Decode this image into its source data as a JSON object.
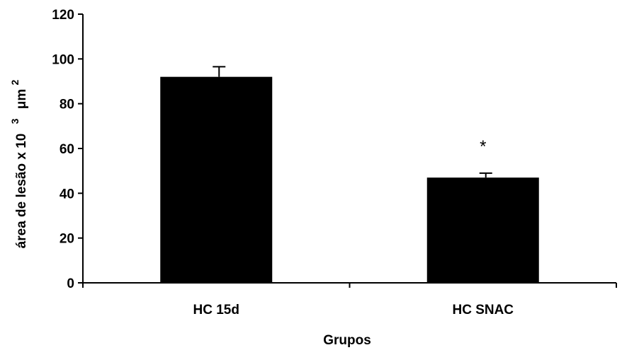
{
  "chart_data": {
    "type": "bar",
    "categories": [
      "HC 15d",
      "HC SNAC"
    ],
    "values": [
      92,
      47
    ],
    "errors": [
      4.5,
      2
    ],
    "annotations": [
      "",
      "*"
    ],
    "xlabel": "Grupos",
    "ylabel": {
      "main": "área de lesão x 10",
      "exp1": "3",
      "unit": "μm",
      "exp2": "2"
    },
    "ylim": [
      0,
      120
    ],
    "yticks": [
      0,
      20,
      40,
      60,
      80,
      100,
      120
    ],
    "grid": false,
    "bar_color": "#000000"
  }
}
